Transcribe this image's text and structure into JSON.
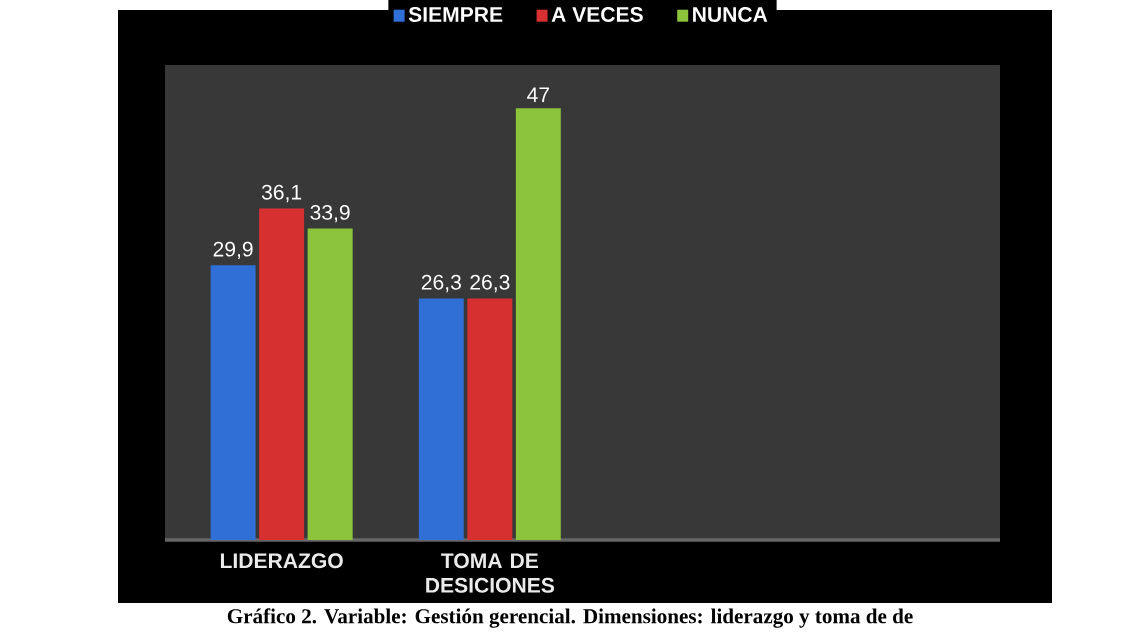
{
  "chart_data": {
    "type": "bar",
    "categories": [
      "LIDERAZGO",
      "TOMA DE DESICIONES"
    ],
    "series": [
      {
        "name": "SIEMPRE",
        "color": "#2f6fd6",
        "values": [
          29.9,
          26.3
        ],
        "value_labels": [
          "29,9",
          "26,3"
        ]
      },
      {
        "name": "A VECES",
        "color": "#d63030",
        "values": [
          36.1,
          26.3
        ],
        "value_labels": [
          "36,1",
          "26,3"
        ]
      },
      {
        "name": "NUNCA",
        "color": "#8cc43c",
        "values": [
          33.9,
          47
        ],
        "value_labels": [
          "33,9",
          "47"
        ]
      }
    ],
    "legend": "top",
    "annotations": [
      "Gráfico 2. Variable: Gestión gerencial. Dimensiones: liderazgo y toma de de"
    ]
  }
}
